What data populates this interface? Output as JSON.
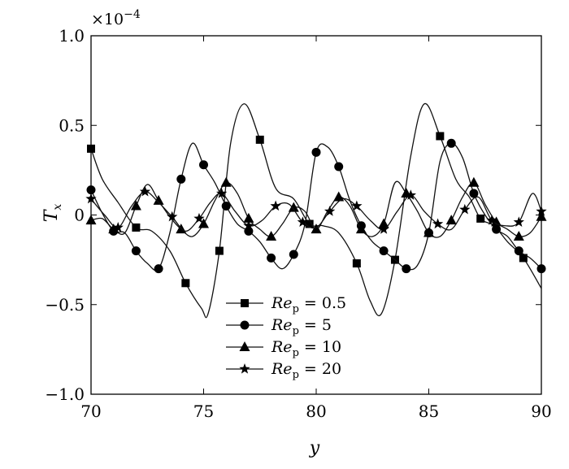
{
  "chart_data": {
    "type": "line",
    "title": "",
    "xlabel": "y",
    "ylabel_main": "T",
    "ylabel_sub": "x",
    "scale_multiplier": "×10",
    "scale_exponent": "−4",
    "xlim": [
      70,
      90
    ],
    "ylim": [
      -1.0,
      1.0
    ],
    "x_ticks": [
      70,
      75,
      80,
      85,
      90
    ],
    "x_tick_labels": [
      "70",
      "75",
      "80",
      "85",
      "90"
    ],
    "y_ticks": [
      -1.0,
      -0.5,
      0,
      0.5,
      1.0
    ],
    "y_tick_labels": [
      "−1.0",
      "−0.5",
      "0",
      "0.5",
      "1.0"
    ],
    "grid": false,
    "legend_position": "bottom-center",
    "series": [
      {
        "name_main": "Re",
        "name_sub": "p",
        "name_value": " = 0.5",
        "marker": "square",
        "x": [
          70.0,
          70.5,
          71.2,
          72.0,
          72.7,
          73.5,
          74.2,
          74.9,
          75.2,
          75.7,
          76.2,
          76.8,
          77.5,
          78.2,
          79.0,
          79.7,
          80.3,
          81.0,
          81.8,
          82.4,
          82.9,
          83.5,
          84.2,
          84.8,
          85.5,
          86.2,
          86.8,
          87.3,
          87.9,
          88.5,
          89.2,
          90.0
        ],
        "y": [
          0.37,
          0.2,
          0.07,
          -0.07,
          -0.09,
          -0.2,
          -0.38,
          -0.52,
          -0.55,
          -0.2,
          0.4,
          0.62,
          0.42,
          0.15,
          0.09,
          -0.05,
          -0.06,
          -0.1,
          -0.27,
          -0.48,
          -0.55,
          -0.25,
          0.33,
          0.62,
          0.44,
          0.2,
          0.1,
          -0.02,
          -0.06,
          -0.15,
          -0.24,
          -0.41
        ]
      },
      {
        "name_main": "Re",
        "name_sub": "p",
        "name_value": " = 5",
        "marker": "circle",
        "x": [
          70.0,
          70.5,
          71.0,
          71.5,
          72.0,
          72.5,
          73.0,
          73.5,
          74.0,
          74.5,
          75.0,
          75.5,
          76.0,
          76.5,
          77.0,
          77.5,
          78.0,
          78.5,
          79.0,
          79.5,
          80.0,
          80.5,
          81.0,
          81.5,
          82.0,
          82.5,
          83.0,
          83.5,
          84.0,
          84.5,
          85.0,
          85.5,
          86.0,
          86.5,
          87.0,
          87.5,
          88.0,
          88.5,
          89.0,
          89.5,
          90.0
        ],
        "y": [
          0.14,
          0.01,
          -0.09,
          -0.1,
          -0.2,
          -0.27,
          -0.3,
          -0.1,
          0.2,
          0.4,
          0.28,
          0.18,
          0.05,
          -0.05,
          -0.09,
          -0.15,
          -0.24,
          -0.3,
          -0.22,
          -0.05,
          0.35,
          0.38,
          0.27,
          0.08,
          -0.06,
          -0.15,
          -0.2,
          -0.25,
          -0.3,
          -0.28,
          -0.1,
          0.3,
          0.4,
          0.32,
          0.12,
          0.0,
          -0.08,
          -0.12,
          -0.2,
          -0.24,
          -0.3
        ]
      },
      {
        "name_main": "Re",
        "name_sub": "p",
        "name_value": " = 10",
        "marker": "triangle",
        "x": [
          70.0,
          70.5,
          71.0,
          71.5,
          72.0,
          72.5,
          73.0,
          73.5,
          74.0,
          74.5,
          75.0,
          75.5,
          76.0,
          76.5,
          77.0,
          77.5,
          78.0,
          78.5,
          79.0,
          79.5,
          80.0,
          80.5,
          81.0,
          81.5,
          82.0,
          82.5,
          83.0,
          83.5,
          84.0,
          84.5,
          85.0,
          85.5,
          86.0,
          86.5,
          87.0,
          87.5,
          88.0,
          88.5,
          89.0,
          89.5,
          90.0
        ],
        "y": [
          -0.03,
          -0.02,
          -0.08,
          -0.1,
          0.05,
          0.17,
          0.08,
          -0.01,
          -0.08,
          -0.12,
          -0.05,
          0.08,
          0.18,
          0.12,
          -0.02,
          -0.08,
          -0.12,
          -0.05,
          0.04,
          0.02,
          -0.08,
          0.02,
          0.1,
          0.05,
          -0.08,
          -0.12,
          -0.05,
          0.18,
          0.12,
          0.02,
          -0.1,
          -0.12,
          -0.03,
          0.1,
          0.18,
          0.06,
          -0.04,
          -0.08,
          -0.12,
          -0.1,
          -0.01
        ]
      },
      {
        "name_main": "Re",
        "name_sub": "p",
        "name_value": " = 20",
        "marker": "star",
        "x": [
          70.0,
          70.6,
          71.2,
          71.8,
          72.4,
          73.0,
          73.6,
          74.2,
          74.8,
          75.3,
          75.8,
          76.4,
          77.0,
          77.6,
          78.2,
          78.8,
          79.4,
          80.0,
          80.6,
          81.2,
          81.8,
          82.4,
          83.0,
          83.6,
          84.2,
          84.8,
          85.4,
          86.0,
          86.6,
          87.2,
          87.8,
          88.4,
          89.0,
          89.6,
          90.0
        ],
        "y": [
          0.09,
          0.0,
          -0.07,
          0.05,
          0.13,
          0.07,
          -0.01,
          -0.09,
          -0.02,
          0.07,
          0.12,
          0.02,
          -0.06,
          -0.03,
          0.05,
          0.06,
          -0.04,
          -0.07,
          0.02,
          0.09,
          0.05,
          -0.03,
          -0.08,
          0.02,
          0.11,
          0.02,
          -0.05,
          -0.08,
          0.03,
          0.1,
          -0.03,
          -0.06,
          -0.04,
          0.12,
          0.02
        ]
      }
    ]
  }
}
